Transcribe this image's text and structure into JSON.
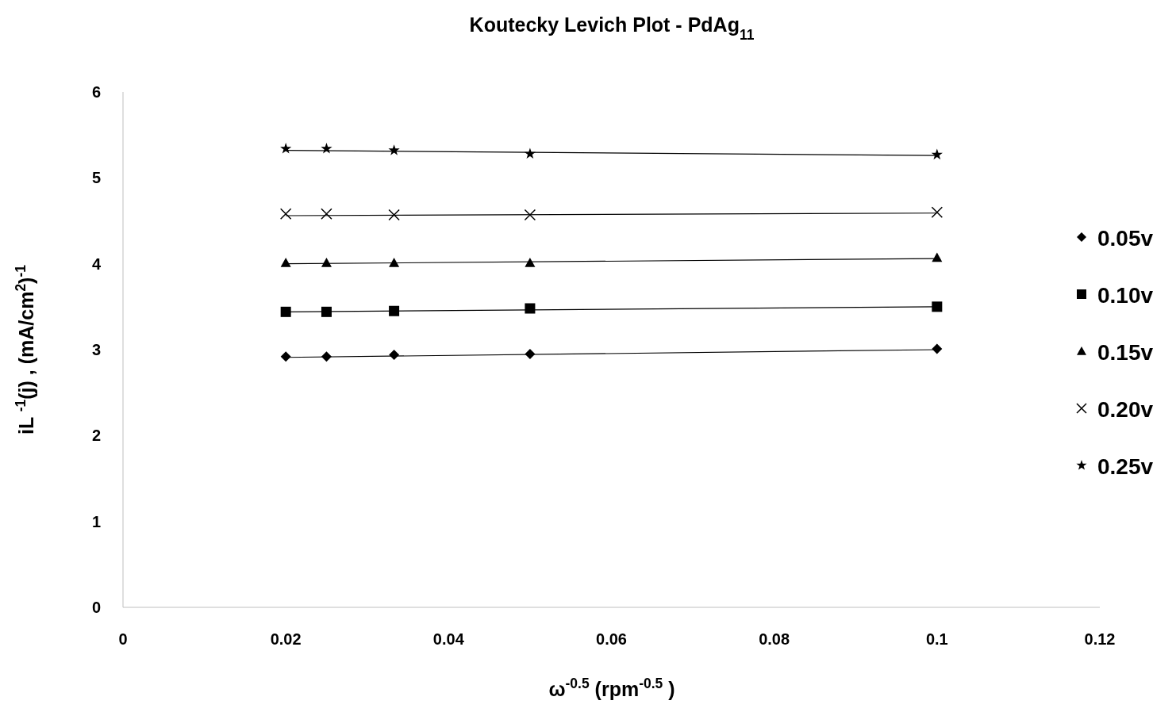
{
  "chart_data": {
    "type": "scatter",
    "title": "Koutecky Levich Plot - PdAg$_{11}$",
    "xlabel": "ω$^{-0.5}$ (rpm$^{-0.5}$ )",
    "ylabel": "iL $^{-1}$(j) , (mA/cm$^{2}$)$^{-1}$",
    "xlim": [
      0,
      0.12
    ],
    "xticks": [
      0,
      0.02,
      0.04,
      0.06,
      0.08,
      0.1,
      0.12
    ],
    "ylim": [
      0,
      6
    ],
    "yticks": [
      0,
      1,
      2,
      3,
      4,
      5,
      6
    ],
    "grid": false,
    "legend": "right",
    "series": [
      {
        "name": "0.05v",
        "color": "#000000",
        "marker": "diamond",
        "x": [
          0.02,
          0.025,
          0.0333,
          0.05,
          0.1
        ],
        "values": [
          2.92,
          2.92,
          2.94,
          2.95,
          3.01
        ]
      },
      {
        "name": "0.10v",
        "color": "#000000",
        "marker": "square",
        "x": [
          0.02,
          0.025,
          0.0333,
          0.05,
          0.1
        ],
        "values": [
          3.44,
          3.44,
          3.45,
          3.48,
          3.5
        ]
      },
      {
        "name": "0.15v",
        "color": "#000000",
        "marker": "triangle",
        "x": [
          0.02,
          0.025,
          0.0333,
          0.05,
          0.1
        ],
        "values": [
          4.01,
          4.01,
          4.01,
          4.01,
          4.07
        ]
      },
      {
        "name": "0.20v",
        "color": "#000000",
        "marker": "cross",
        "x": [
          0.02,
          0.025,
          0.0333,
          0.05,
          0.1
        ],
        "values": [
          4.58,
          4.58,
          4.57,
          4.57,
          4.6
        ]
      },
      {
        "name": "0.25v",
        "color": "#000000",
        "marker": "star",
        "x": [
          0.02,
          0.025,
          0.0333,
          0.05,
          0.1
        ],
        "values": [
          5.34,
          5.34,
          5.32,
          5.28,
          5.27
        ]
      },
      {
        "type": "line",
        "color": "#000000",
        "marker": "none",
        "x": [
          0.02,
          0.1
        ],
        "values": [
          2.91,
          3.0
        ]
      },
      {
        "type": "line",
        "color": "#000000",
        "marker": "none",
        "x": [
          0.02,
          0.1
        ],
        "values": [
          3.44,
          3.5
        ]
      },
      {
        "type": "line",
        "color": "#000000",
        "marker": "none",
        "x": [
          0.02,
          0.1
        ],
        "values": [
          4.0,
          4.06
        ]
      },
      {
        "type": "line",
        "color": "#000000",
        "marker": "none",
        "x": [
          0.02,
          0.1
        ],
        "values": [
          4.56,
          4.59
        ]
      },
      {
        "type": "line",
        "color": "#000000",
        "marker": "none",
        "x": [
          0.02,
          0.1
        ],
        "values": [
          5.32,
          5.26
        ]
      }
    ]
  }
}
